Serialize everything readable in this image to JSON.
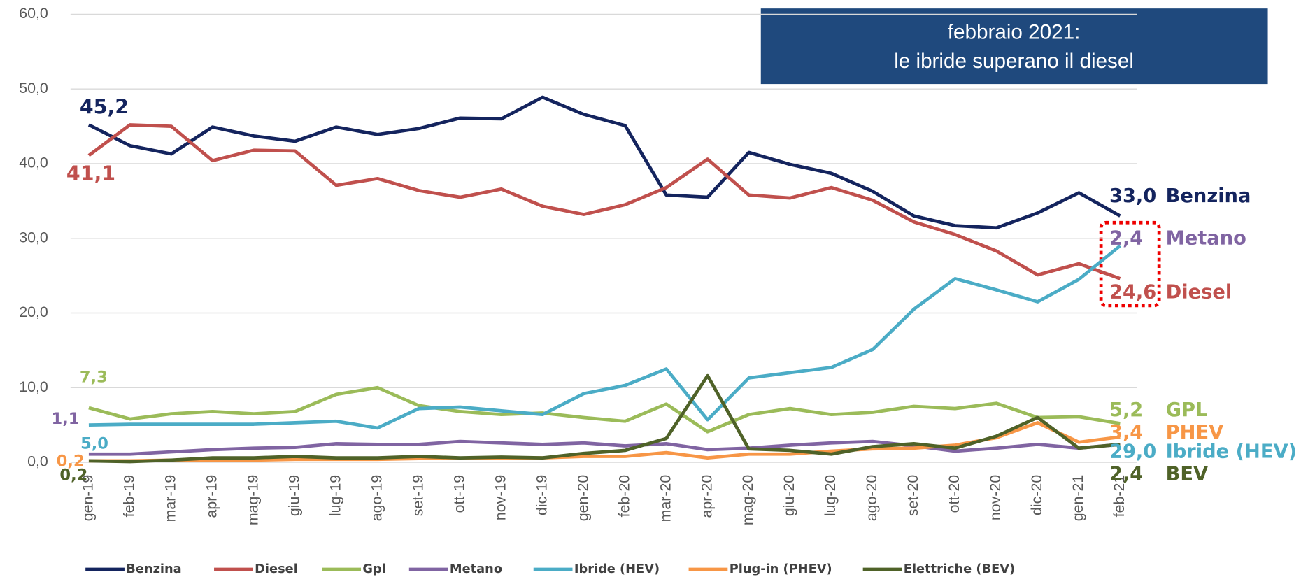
{
  "chart_data": {
    "type": "line",
    "annotation": [
      "febbraio 2021:",
      "le ibride superano il diesel"
    ],
    "categories": [
      "gen-19",
      "feb-19",
      "mar-19",
      "apr-19",
      "mag-19",
      "giu-19",
      "lug-19",
      "ago-19",
      "set-19",
      "ott-19",
      "nov-19",
      "dic-19",
      "gen-20",
      "feb-20",
      "mar-20",
      "apr-20",
      "mag-20",
      "giu-20",
      "lug-20",
      "ago-20",
      "set-20",
      "ott-20",
      "nov-20",
      "dic-20",
      "gen-21",
      "feb-21"
    ],
    "ylim": [
      0,
      60
    ],
    "yticks": [
      {
        "value": 0,
        "label": "0,0"
      },
      {
        "value": 10,
        "label": "10,0"
      },
      {
        "value": 20,
        "label": "20,0"
      },
      {
        "value": 30,
        "label": "30,0"
      },
      {
        "value": 40,
        "label": "40,0"
      },
      {
        "value": 50,
        "label": "50,0"
      },
      {
        "value": 60,
        "label": "60,0"
      }
    ],
    "grid": true,
    "legend": "bottom",
    "series": [
      {
        "name": "Benzina",
        "end_name": "Benzina",
        "color": "#14245e",
        "values": [
          45.2,
          42.4,
          41.3,
          44.9,
          43.7,
          43.0,
          44.9,
          43.9,
          44.7,
          46.1,
          46.0,
          48.9,
          46.6,
          45.1,
          35.8,
          35.5,
          41.5,
          39.9,
          38.7,
          36.3,
          33.0,
          31.7,
          31.4,
          33.4,
          36.1,
          33.0
        ],
        "value_labels": [
          "45,2",
          null,
          null,
          null,
          null,
          null,
          null,
          null,
          null,
          null,
          null,
          null,
          null,
          null,
          null,
          null,
          null,
          null,
          null,
          null,
          null,
          null,
          null,
          null,
          null,
          "33,0"
        ]
      },
      {
        "name": "Diesel",
        "end_name": "Diesel",
        "color": "#c0504d",
        "values": [
          41.1,
          45.2,
          45.0,
          40.4,
          41.8,
          41.7,
          37.1,
          38.0,
          36.4,
          35.5,
          36.6,
          34.3,
          33.2,
          34.5,
          36.8,
          40.6,
          35.8,
          35.4,
          36.8,
          35.1,
          32.2,
          30.5,
          28.3,
          25.1,
          26.6,
          24.6
        ],
        "value_labels": [
          "41,1",
          null,
          null,
          null,
          null,
          null,
          null,
          null,
          null,
          null,
          null,
          null,
          null,
          null,
          null,
          null,
          null,
          null,
          null,
          null,
          null,
          null,
          null,
          null,
          null,
          "24,6"
        ]
      },
      {
        "name": "Gpl",
        "end_name": "GPL",
        "color": "#9bbb59",
        "values": [
          7.3,
          5.8,
          6.5,
          6.8,
          6.5,
          6.8,
          9.1,
          10.0,
          7.6,
          6.8,
          6.4,
          6.6,
          6.0,
          5.5,
          7.8,
          4.1,
          6.4,
          7.2,
          6.4,
          6.7,
          7.5,
          7.2,
          7.9,
          6.0,
          6.1,
          5.2
        ],
        "value_labels": [
          "7,3",
          null,
          null,
          null,
          null,
          null,
          null,
          null,
          null,
          null,
          null,
          null,
          null,
          null,
          null,
          null,
          null,
          null,
          null,
          null,
          null,
          null,
          null,
          null,
          null,
          "5,2"
        ]
      },
      {
        "name": "Metano",
        "end_name": "Metano",
        "color": "#8064a2",
        "values": [
          1.1,
          1.1,
          1.4,
          1.7,
          1.9,
          2.0,
          2.5,
          2.4,
          2.4,
          2.8,
          2.6,
          2.4,
          2.6,
          2.2,
          2.5,
          1.7,
          1.9,
          2.3,
          2.6,
          2.8,
          2.2,
          1.5,
          1.9,
          2.4,
          1.9,
          2.4
        ],
        "value_labels": [
          "1,1",
          null,
          null,
          null,
          null,
          null,
          null,
          null,
          null,
          null,
          null,
          null,
          null,
          null,
          null,
          null,
          null,
          null,
          null,
          null,
          null,
          null,
          null,
          null,
          null,
          "2,4"
        ]
      },
      {
        "name": "Ibride (HEV)",
        "end_name": "Ibride (HEV)",
        "color": "#4bacc6",
        "values": [
          5.0,
          5.1,
          5.1,
          5.1,
          5.1,
          5.3,
          5.5,
          4.6,
          7.2,
          7.4,
          6.9,
          6.4,
          9.2,
          10.3,
          12.5,
          5.7,
          11.3,
          12.0,
          12.7,
          15.1,
          20.5,
          24.6,
          23.1,
          21.5,
          24.5,
          29.0
        ],
        "value_labels": [
          "5,0",
          null,
          null,
          null,
          null,
          null,
          null,
          null,
          null,
          null,
          null,
          null,
          null,
          null,
          null,
          null,
          null,
          null,
          null,
          null,
          null,
          null,
          null,
          null,
          null,
          "29,0"
        ]
      },
      {
        "name": "Plug-in (PHEV)",
        "end_name": "PHEV",
        "color": "#f79646",
        "values": [
          0.2,
          0.2,
          0.3,
          0.3,
          0.3,
          0.4,
          0.4,
          0.4,
          0.5,
          0.5,
          0.6,
          0.6,
          0.8,
          0.8,
          1.3,
          0.6,
          1.1,
          1.1,
          1.5,
          1.8,
          1.9,
          2.3,
          3.3,
          5.3,
          2.7,
          3.4
        ],
        "value_labels": [
          "0,2",
          null,
          null,
          null,
          null,
          null,
          null,
          null,
          null,
          null,
          null,
          null,
          null,
          null,
          null,
          null,
          null,
          null,
          null,
          null,
          null,
          null,
          null,
          null,
          null,
          "3,4"
        ]
      },
      {
        "name": "Elettriche (BEV)",
        "end_name": "BEV",
        "color": "#4f6228",
        "values": [
          0.2,
          0.1,
          0.3,
          0.6,
          0.6,
          0.8,
          0.6,
          0.6,
          0.8,
          0.6,
          0.7,
          0.6,
          1.2,
          1.6,
          3.2,
          11.6,
          1.8,
          1.6,
          1.1,
          2.1,
          2.5,
          1.9,
          3.5,
          6.0,
          1.9,
          2.4
        ],
        "value_labels": [
          "0,2",
          null,
          null,
          null,
          null,
          null,
          null,
          null,
          null,
          null,
          null,
          null,
          null,
          null,
          null,
          null,
          null,
          null,
          null,
          null,
          null,
          null,
          null,
          null,
          null,
          "2,4"
        ]
      }
    ]
  }
}
